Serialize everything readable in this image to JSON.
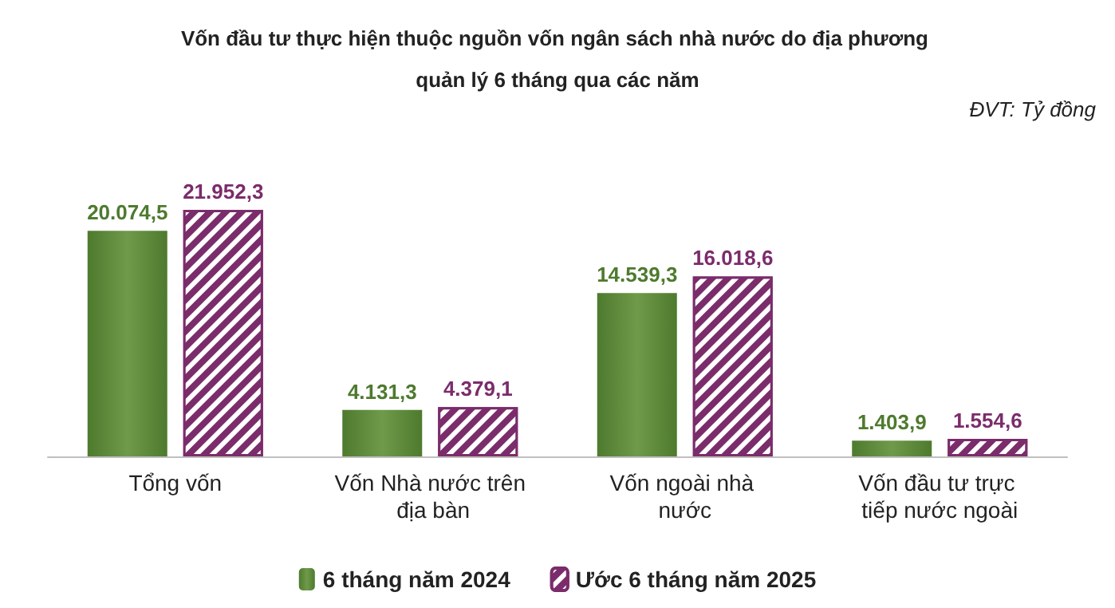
{
  "chart_data": {
    "type": "bar",
    "title": "Vốn đầu tư thực hiện thuộc nguồn vốn ngân sách nhà nước do địa phương quản lý 6 tháng qua các năm",
    "annotations": [
      "ĐVT: Tỷ đồng"
    ],
    "categories": [
      "Tổng vốn",
      "Vốn Nhà nước trên địa bàn",
      "Vốn ngoài nhà nước",
      "Vốn đầu tư trực tiếp nước ngoài"
    ],
    "series": [
      {
        "name": "6 tháng năm 2024",
        "color": "#4e7a2e",
        "values": [
          20074.5,
          4131.3,
          14539.3,
          1403.9
        ],
        "value_labels": [
          "20.074,5",
          "4.131,3",
          "14.539,3",
          "1.403,9"
        ]
      },
      {
        "name": "Ước 6 tháng năm 2025",
        "color": "#7b2c6b",
        "values": [
          21952.3,
          4379.1,
          16018.6,
          1554.6
        ],
        "value_labels": [
          "21.952,3",
          "4.379,1",
          "16.018,6",
          "1.554,6"
        ]
      }
    ],
    "legend": "bottom"
  }
}
